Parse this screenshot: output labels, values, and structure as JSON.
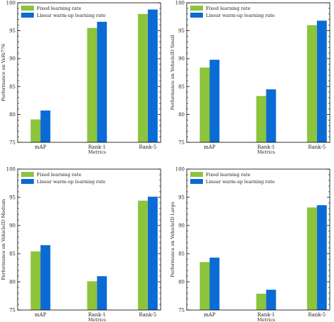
{
  "figure": {
    "legend_labels": [
      "Fixed learning rate",
      "Linear warm-up learning rate"
    ],
    "colors": [
      "#8cc43c",
      "#0b6bd4"
    ]
  },
  "chart_data": [
    {
      "type": "bar",
      "categories": [
        "mAP",
        "Rank-1",
        "Rank-5"
      ],
      "series": [
        {
          "name": "Fixed learning rate",
          "values": [
            79.1,
            95.5,
            98.0
          ]
        },
        {
          "name": "Linear warm-up learning rate",
          "values": [
            80.7,
            96.6,
            98.8
          ]
        }
      ],
      "xlabel": "Metrics",
      "ylabel": "Performance on VeRi776",
      "ylim": [
        75,
        100
      ],
      "yticks": [
        "75",
        "80",
        "85",
        "90",
        "95",
        "100"
      ],
      "legend_position": "top-left",
      "grid": false
    },
    {
      "type": "bar",
      "categories": [
        "mAP",
        "Rank-1",
        "Rank-5"
      ],
      "series": [
        {
          "name": "Fixed learning rate",
          "values": [
            88.4,
            83.3,
            96.0
          ]
        },
        {
          "name": "Linear warm-up learning rate",
          "values": [
            89.8,
            84.5,
            96.8
          ]
        }
      ],
      "xlabel": "Metrics",
      "ylabel": "Performance on VehicleID Small",
      "ylim": [
        75,
        100
      ],
      "yticks": [
        "75",
        "80",
        "85",
        "90",
        "95",
        "100"
      ],
      "legend_position": "top-left",
      "grid": false
    },
    {
      "type": "bar",
      "categories": [
        "mAP",
        "Rank-1",
        "Rank-5"
      ],
      "series": [
        {
          "name": "Fixed learning rate",
          "values": [
            85.4,
            80.1,
            94.4
          ]
        },
        {
          "name": "Linear warm-up learning rate",
          "values": [
            86.5,
            81.0,
            95.1
          ]
        }
      ],
      "xlabel": "Metrics",
      "ylabel": "Performance on VehicleID Medium",
      "ylim": [
        75,
        100
      ],
      "yticks": [
        "75",
        "80",
        "85",
        "90",
        "95",
        "100"
      ],
      "legend_position": "top-left",
      "grid": false
    },
    {
      "type": "bar",
      "categories": [
        "mAP",
        "Rank-1",
        "Rank-5"
      ],
      "series": [
        {
          "name": "Fixed learning rate",
          "values": [
            83.5,
            77.9,
            93.2
          ]
        },
        {
          "name": "Linear warm-up learning rate",
          "values": [
            84.3,
            78.6,
            93.6
          ]
        }
      ],
      "xlabel": "Metrics",
      "ylabel": "Performance on VehicleID Large",
      "ylim": [
        75,
        100
      ],
      "yticks": [
        "75",
        "80",
        "85",
        "90",
        "95",
        "100"
      ],
      "legend_position": "top-left",
      "grid": false
    }
  ]
}
